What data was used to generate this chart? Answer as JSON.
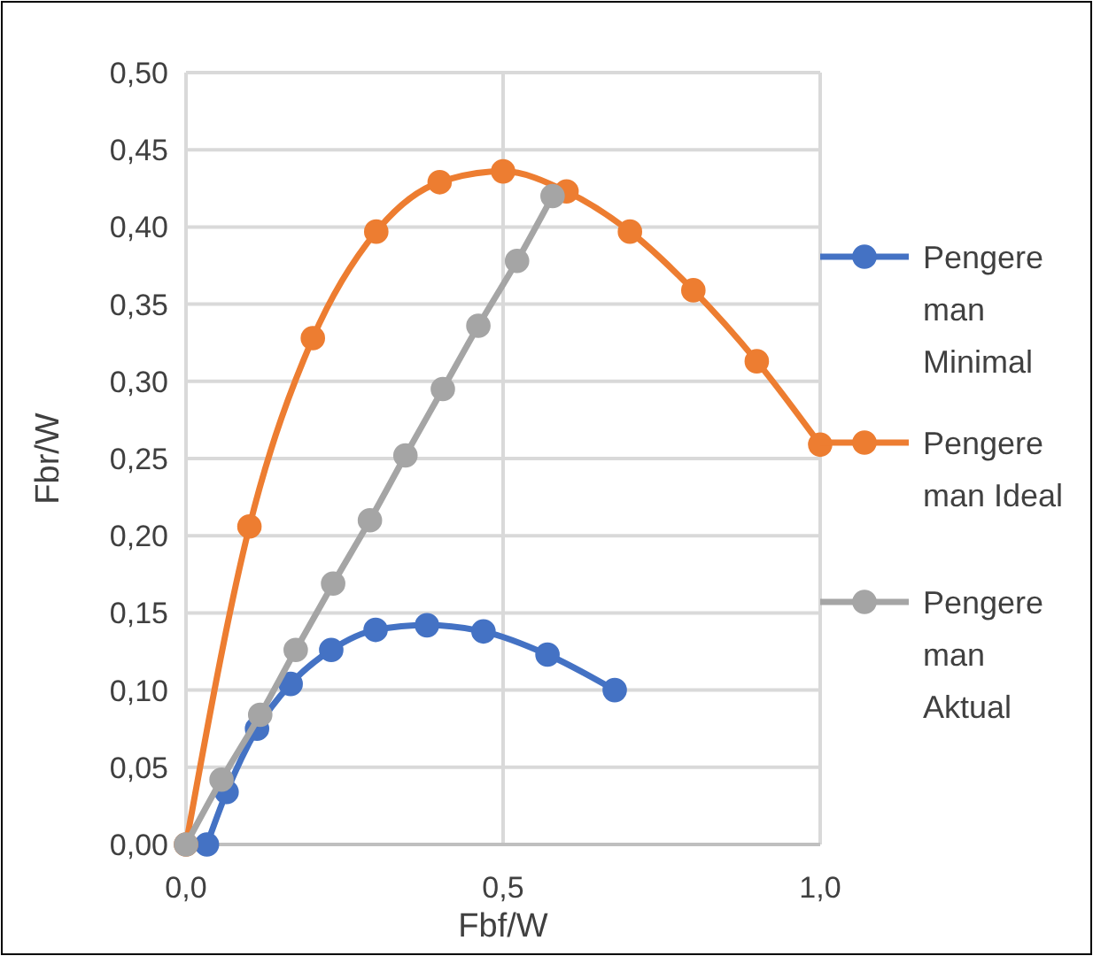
{
  "chart_data": {
    "type": "line",
    "xlabel": "Fbf/W",
    "ylabel": "Fbr/W",
    "xlim": [
      0,
      1.0
    ],
    "xticks": [
      {
        "value": 0,
        "label": "0,0"
      },
      {
        "value": 0.5,
        "label": "0,5"
      },
      {
        "value": 1.0,
        "label": "1,0"
      }
    ],
    "ylim": [
      0,
      0.5
    ],
    "yticks": [
      {
        "value": 0,
        "label": "0,00"
      },
      {
        "value": 0.05,
        "label": "0,05"
      },
      {
        "value": 0.1,
        "label": "0,10"
      },
      {
        "value": 0.15,
        "label": "0,15"
      },
      {
        "value": 0.2,
        "label": "0,20"
      },
      {
        "value": 0.25,
        "label": "0,25"
      },
      {
        "value": 0.3,
        "label": "0,30"
      },
      {
        "value": 0.35,
        "label": "0,35"
      },
      {
        "value": 0.4,
        "label": "0,40"
      },
      {
        "value": 0.45,
        "label": "0,45"
      },
      {
        "value": 0.5,
        "label": "0,50"
      }
    ],
    "grid": true,
    "legend": "right",
    "marker": "circle",
    "line_style": "solid",
    "series": [
      {
        "name": "Pengereman Minimal",
        "color": "#4472c4",
        "x": [
          0.033,
          0.064,
          0.112,
          0.165,
          0.229,
          0.299,
          0.38,
          0.469,
          0.57,
          0.676
        ],
        "values": [
          0,
          0.034,
          0.075,
          0.104,
          0.126,
          0.139,
          0.142,
          0.138,
          0.123,
          0.1
        ]
      },
      {
        "name": "Pengereman Ideal",
        "color": "#ed7d31",
        "x": [
          0,
          0.1,
          0.2,
          0.3,
          0.4,
          0.5,
          0.6,
          0.7,
          0.8,
          0.9,
          1.0
        ],
        "values": [
          0,
          0.206,
          0.328,
          0.397,
          0.429,
          0.436,
          0.423,
          0.397,
          0.359,
          0.313,
          0.259
        ]
      },
      {
        "name": "Pengereman Aktual",
        "color": "#a5a5a5",
        "x": [
          0,
          0.056,
          0.117,
          0.173,
          0.232,
          0.29,
          0.346,
          0.405,
          0.461,
          0.522,
          0.578
        ],
        "values": [
          0,
          0.042,
          0.084,
          0.126,
          0.169,
          0.21,
          0.252,
          0.295,
          0.336,
          0.378,
          0.42
        ]
      }
    ]
  }
}
